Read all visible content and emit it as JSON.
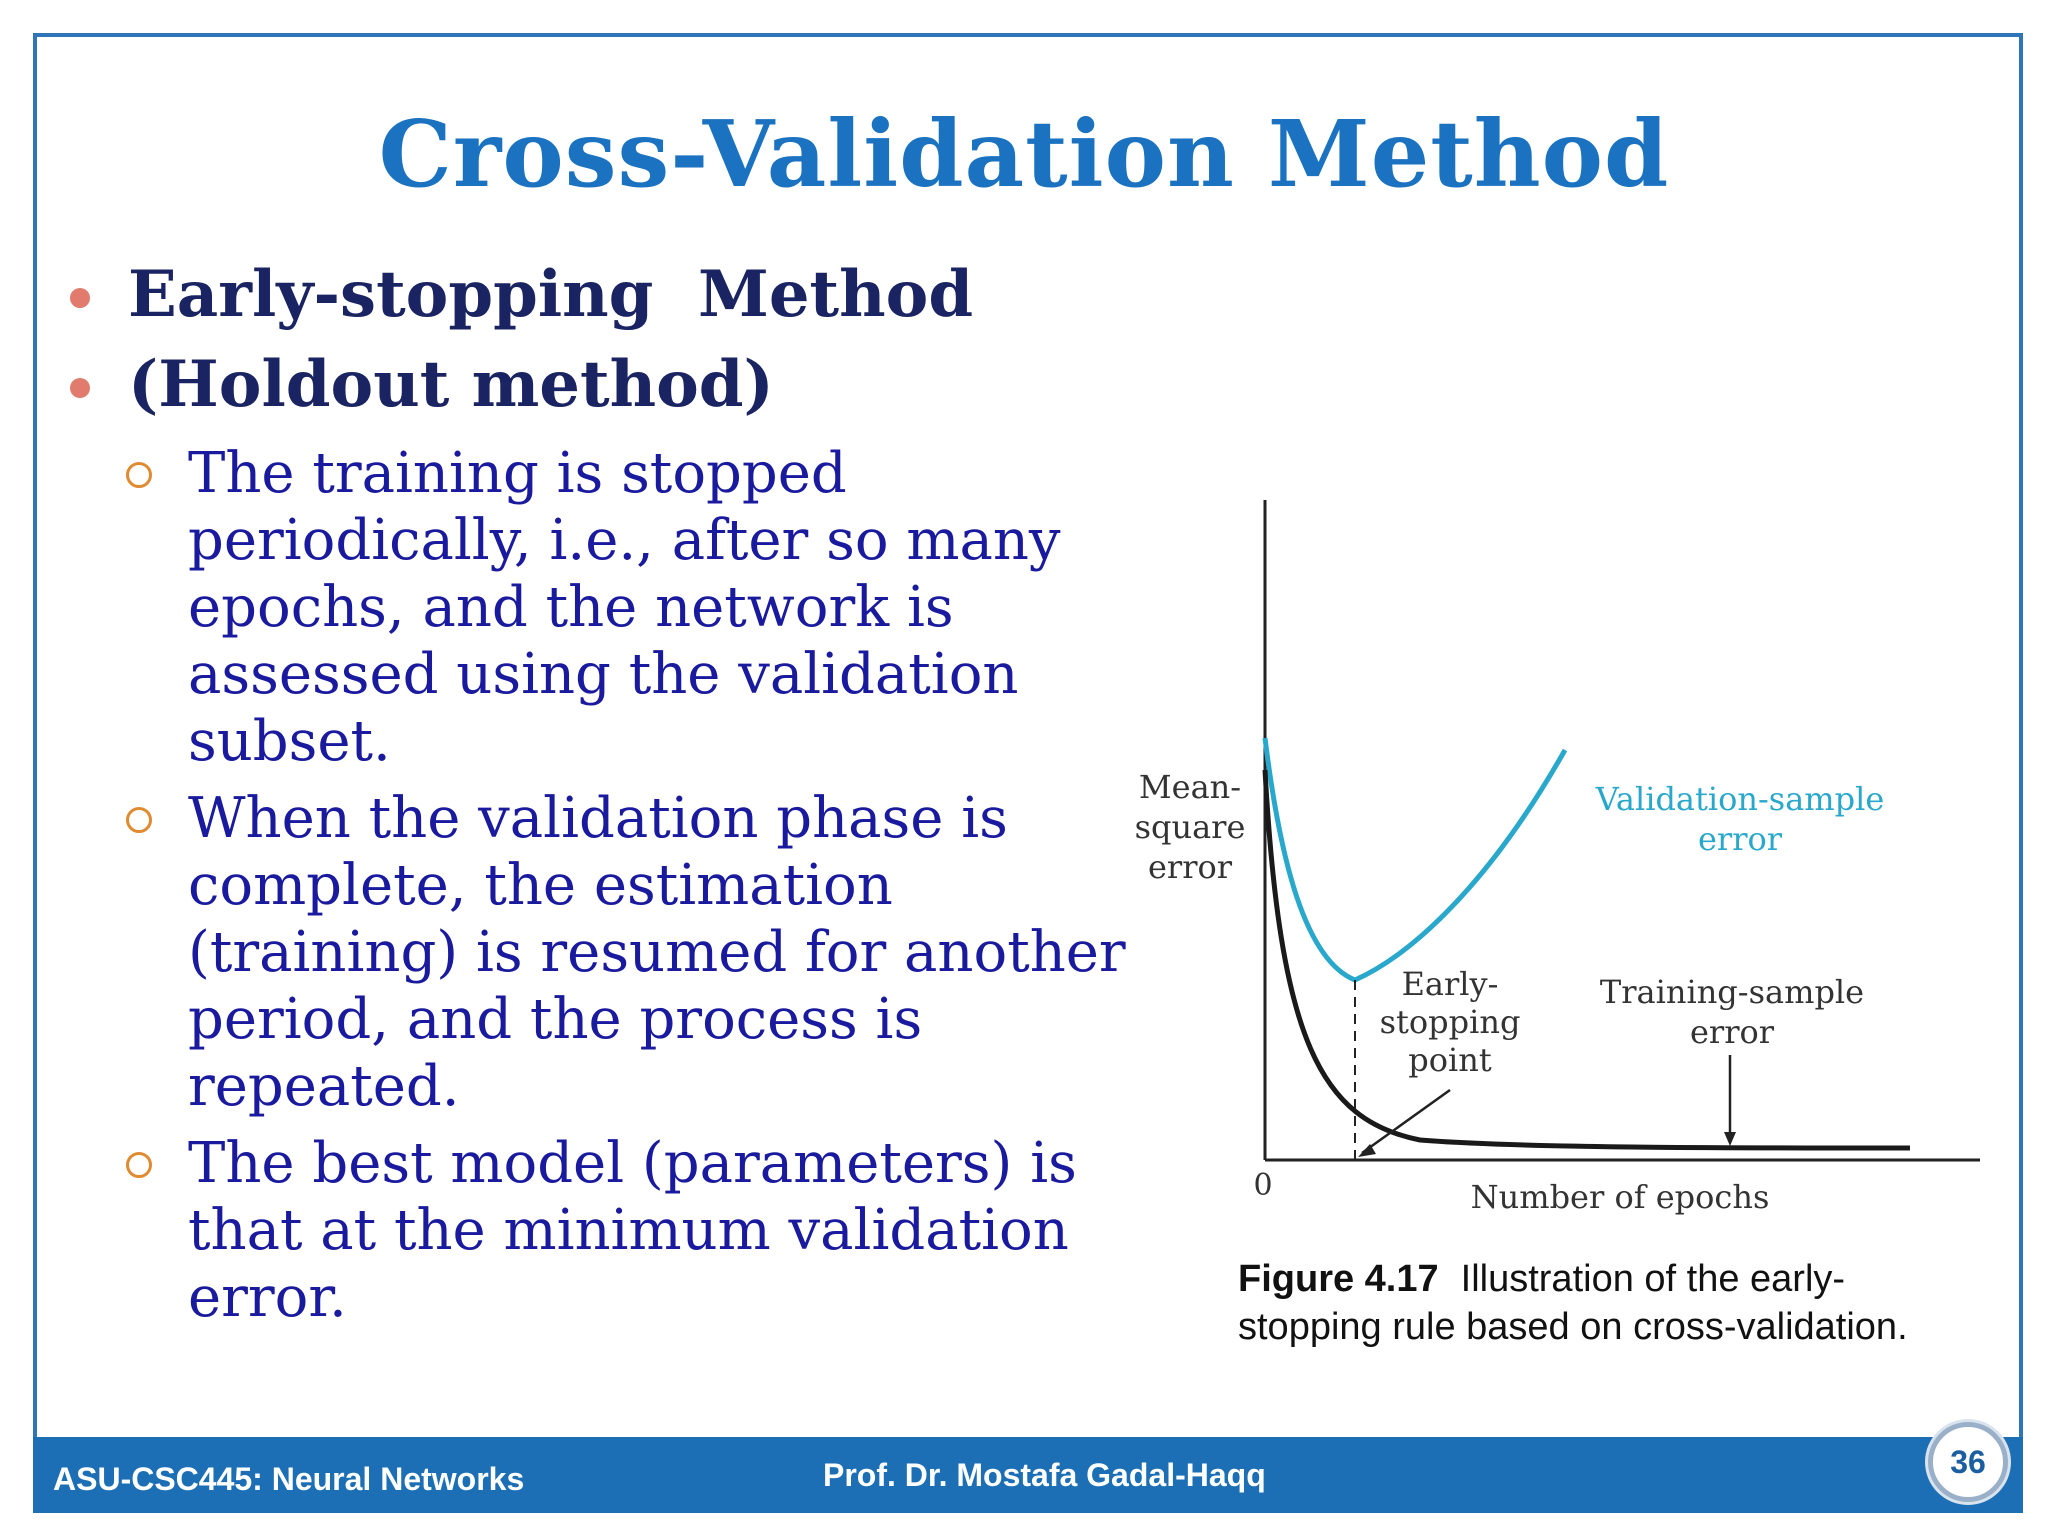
{
  "slide": {
    "title": "Cross-Validation Method",
    "bullets": [
      {
        "text": "Early-stopping  Method"
      },
      {
        "text": "(Holdout method)"
      }
    ],
    "sub_bullets": [
      {
        "text": "The training is stopped periodically, i.e., after so many epochs, and the network is assessed using the validation subset."
      },
      {
        "text": "When the validation phase is complete, the estimation (training) is resumed for another period, and the process is repeated."
      },
      {
        "text": "The best model (parameters) is that at the minimum validation error."
      }
    ]
  },
  "figure": {
    "y_label": [
      "Mean-",
      "square",
      "error"
    ],
    "x_label": "Number of epochs",
    "origin_label": "0",
    "validation_label": [
      "Validation-sample",
      "error"
    ],
    "training_label": [
      "Training-sample",
      "error"
    ],
    "early_stop_label": [
      "Early-",
      "stopping",
      "point"
    ],
    "colors": {
      "validation": "#2aa8cc",
      "training": "#1a1a1a",
      "axis": "#222222"
    },
    "caption_number": "Figure 4.17",
    "caption_text": "Illustration of the early-stopping rule based on cross-validation."
  },
  "footer": {
    "course": "ASU-CSC445: Neural Networks",
    "author": "Prof. Dr. Mostafa Gadal-Haqq",
    "page": "36"
  }
}
